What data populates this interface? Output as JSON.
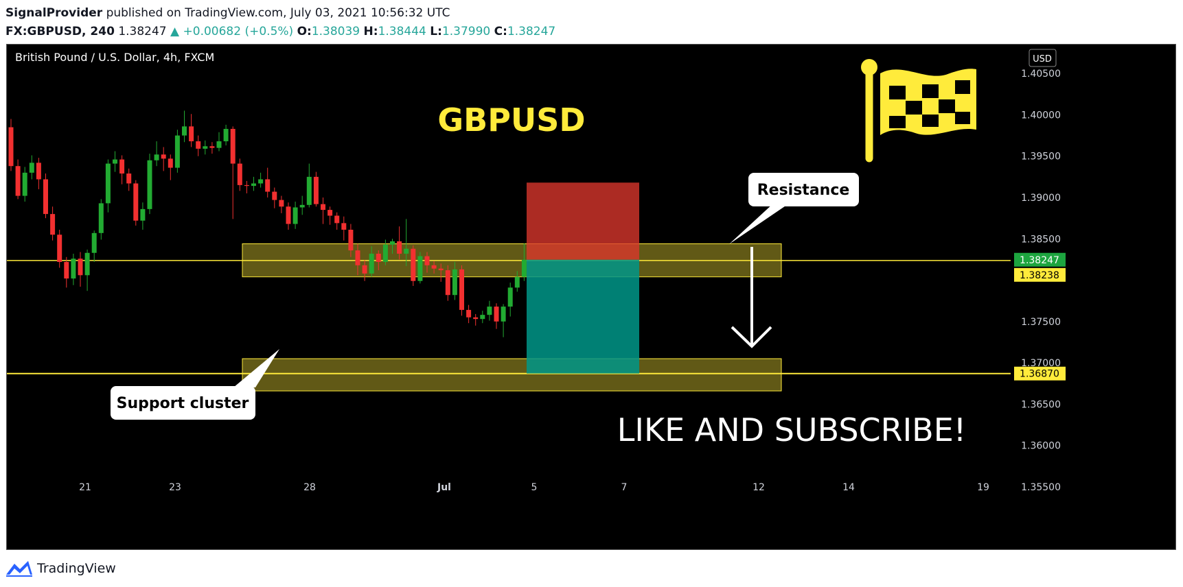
{
  "publisher": {
    "author": "SignalProvider",
    "text": "published on TradingView.com, July 03, 2021 10:56:32 UTC"
  },
  "quote": {
    "symbol": "FX:GBPUSD, 240",
    "last": "1.38247",
    "change": "▲ +0.00682 (+0.5%)",
    "o_label": "O:",
    "o": "1.38039",
    "h_label": "H:",
    "h": "1.38444",
    "l_label": "L:",
    "l": "1.37990",
    "c_label": "C:",
    "c": "1.38247"
  },
  "footer": {
    "brand": "TradingView"
  },
  "chart_data": {
    "type": "candlestick",
    "title": "GBPUSD",
    "instrument_label": "British Pound / U.S. Dollar, 4h, FXCM",
    "currency_badge": "USD",
    "y_ticks": [
      "1.40500",
      "1.40000",
      "1.39500",
      "1.39000",
      "1.38500",
      "1.37500",
      "1.37000",
      "1.36500",
      "1.36000",
      "1.35500"
    ],
    "y_range": [
      1.3525,
      1.4085
    ],
    "x_ticks": [
      "21",
      "23",
      "28",
      "Jul",
      "5",
      "7",
      "12",
      "14",
      "19"
    ],
    "price_labels": [
      {
        "text": "1.38247",
        "value": 1.38247,
        "color": "#1da53f"
      },
      {
        "text": "1.38238",
        "value": 1.38238,
        "color": "#ffeb3b"
      },
      {
        "text": "1.36870",
        "value": 1.3687,
        "color": "#ffeb3b"
      }
    ],
    "horizontal_lines": [
      1.38238,
      1.3687
    ],
    "zones": [
      {
        "name": "resistance-zone",
        "from": 1.3804,
        "to": 1.3844
      },
      {
        "name": "support-zone",
        "from": 1.3666,
        "to": 1.3705
      }
    ],
    "position": {
      "type": "short",
      "entry": 1.38247,
      "stop": 1.3918,
      "target": 1.3687
    },
    "candles": [
      [
        1.3985,
        1.3938,
        1.3995,
        1.3932
      ],
      [
        1.3938,
        1.3902,
        1.3946,
        1.3898
      ],
      [
        1.3902,
        1.393,
        1.3937,
        1.3895
      ],
      [
        1.393,
        1.3942,
        1.3951,
        1.3922
      ],
      [
        1.3942,
        1.3922,
        1.3948,
        1.391
      ],
      [
        1.3922,
        1.388,
        1.3929,
        1.3875
      ],
      [
        1.388,
        1.3855,
        1.3889,
        1.3848
      ],
      [
        1.3855,
        1.3822,
        1.3861,
        1.3815
      ],
      [
        1.3822,
        1.3802,
        1.3828,
        1.3791
      ],
      [
        1.3802,
        1.3826,
        1.3832,
        1.3794
      ],
      [
        1.3826,
        1.3806,
        1.3834,
        1.3792
      ],
      [
        1.3806,
        1.3833,
        1.3837,
        1.3787
      ],
      [
        1.3833,
        1.3857,
        1.386,
        1.3822
      ],
      [
        1.3857,
        1.3893,
        1.3898,
        1.3849
      ],
      [
        1.3893,
        1.3941,
        1.3946,
        1.3882
      ],
      [
        1.3941,
        1.3946,
        1.3956,
        1.3931
      ],
      [
        1.3946,
        1.3929,
        1.3951,
        1.3916
      ],
      [
        1.3929,
        1.3917,
        1.3935,
        1.3908
      ],
      [
        1.3917,
        1.3872,
        1.3921,
        1.3866
      ],
      [
        1.3872,
        1.3886,
        1.3894,
        1.3861
      ],
      [
        1.3886,
        1.3945,
        1.3953,
        1.388
      ],
      [
        1.3945,
        1.3952,
        1.3968,
        1.3938
      ],
      [
        1.3952,
        1.3947,
        1.3961,
        1.3932
      ],
      [
        1.3947,
        1.3936,
        1.3952,
        1.3921
      ],
      [
        1.3936,
        1.3975,
        1.3982,
        1.393
      ],
      [
        1.3975,
        1.3986,
        1.4005,
        1.3967
      ],
      [
        1.3986,
        1.3968,
        1.4001,
        1.3961
      ],
      [
        1.3968,
        1.3959,
        1.3975,
        1.395
      ],
      [
        1.3959,
        1.3962,
        1.3969,
        1.3952
      ],
      [
        1.3962,
        1.396,
        1.3967,
        1.3953
      ],
      [
        1.396,
        1.3968,
        1.3979,
        1.3956
      ],
      [
        1.3968,
        1.3983,
        1.3988,
        1.3963
      ],
      [
        1.3983,
        1.3941,
        1.3986,
        1.3874
      ],
      [
        1.3941,
        1.3915,
        1.3947,
        1.3908
      ],
      [
        1.3915,
        1.3914,
        1.392,
        1.3905
      ],
      [
        1.3914,
        1.3917,
        1.3925,
        1.3908
      ],
      [
        1.3917,
        1.3922,
        1.393,
        1.3912
      ],
      [
        1.3922,
        1.3907,
        1.3936,
        1.39
      ],
      [
        1.3907,
        1.3897,
        1.3912,
        1.3887
      ],
      [
        1.3897,
        1.3889,
        1.3902,
        1.3881
      ],
      [
        1.3889,
        1.3868,
        1.3894,
        1.3861
      ],
      [
        1.3868,
        1.3888,
        1.3895,
        1.3862
      ],
      [
        1.3888,
        1.3891,
        1.3902,
        1.3879
      ],
      [
        1.3891,
        1.3925,
        1.3941,
        1.3888
      ],
      [
        1.3925,
        1.3892,
        1.3931,
        1.3889
      ],
      [
        1.3892,
        1.3885,
        1.39,
        1.3868
      ],
      [
        1.3885,
        1.3878,
        1.3889,
        1.3867
      ],
      [
        1.3878,
        1.3869,
        1.3882,
        1.3861
      ],
      [
        1.3869,
        1.3861,
        1.3877,
        1.3848
      ],
      [
        1.3861,
        1.3836,
        1.3868,
        1.3828
      ],
      [
        1.3836,
        1.3818,
        1.3844,
        1.3806
      ],
      [
        1.3818,
        1.3808,
        1.3824,
        1.3799
      ],
      [
        1.3808,
        1.3832,
        1.3841,
        1.3804
      ],
      [
        1.3832,
        1.3822,
        1.3836,
        1.3812
      ],
      [
        1.3822,
        1.3843,
        1.3849,
        1.3818
      ],
      [
        1.3843,
        1.3847,
        1.385,
        1.3832
      ],
      [
        1.3847,
        1.3832,
        1.3865,
        1.3825
      ],
      [
        1.3832,
        1.3838,
        1.3874,
        1.3817
      ],
      [
        1.3838,
        1.3799,
        1.3842,
        1.3793
      ],
      [
        1.3799,
        1.3829,
        1.3834,
        1.3796
      ],
      [
        1.3829,
        1.3818,
        1.3834,
        1.3809
      ],
      [
        1.3818,
        1.3814,
        1.3823,
        1.3808
      ],
      [
        1.3814,
        1.3812,
        1.382,
        1.3798
      ],
      [
        1.3812,
        1.3782,
        1.3818,
        1.3775
      ],
      [
        1.3782,
        1.3813,
        1.3822,
        1.3776
      ],
      [
        1.3813,
        1.3764,
        1.3818,
        1.3757
      ],
      [
        1.3764,
        1.3755,
        1.377,
        1.3748
      ],
      [
        1.3755,
        1.3753,
        1.3759,
        1.3745
      ],
      [
        1.3753,
        1.3758,
        1.3763,
        1.3748
      ],
      [
        1.3758,
        1.3768,
        1.3775,
        1.3751
      ],
      [
        1.3768,
        1.375,
        1.3772,
        1.3741
      ],
      [
        1.375,
        1.3768,
        1.3771,
        1.3731
      ],
      [
        1.3768,
        1.3791,
        1.3797,
        1.3756
      ],
      [
        1.3791,
        1.3804,
        1.3811,
        1.3786
      ],
      [
        1.3804,
        1.38247,
        1.38444,
        1.3799
      ]
    ]
  },
  "annotations": {
    "resistance": "Resistance",
    "support": "Support cluster",
    "cta": "LIKE AND SUBSCRIBE!"
  }
}
